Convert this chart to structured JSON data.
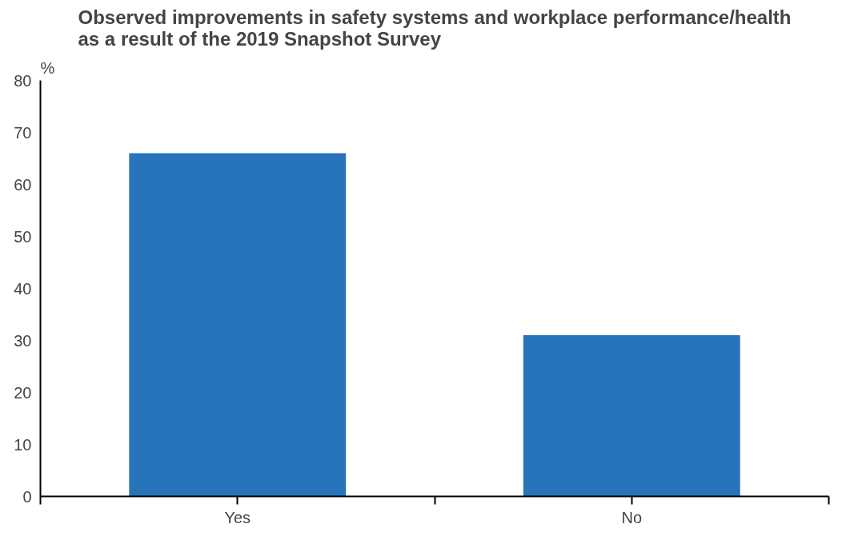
{
  "chart_data": {
    "type": "bar",
    "title": "Observed improvements in safety systems and workplace performance/health as a result of the 2019 Snapshot Survey",
    "ylabel": "%",
    "categories": [
      "Yes",
      "No"
    ],
    "values": [
      66,
      31
    ],
    "color": "#2774bb",
    "ylim": [
      0,
      80
    ],
    "yticks": [
      0,
      10,
      20,
      30,
      40,
      50,
      60,
      70,
      80
    ],
    "grid": false
  }
}
